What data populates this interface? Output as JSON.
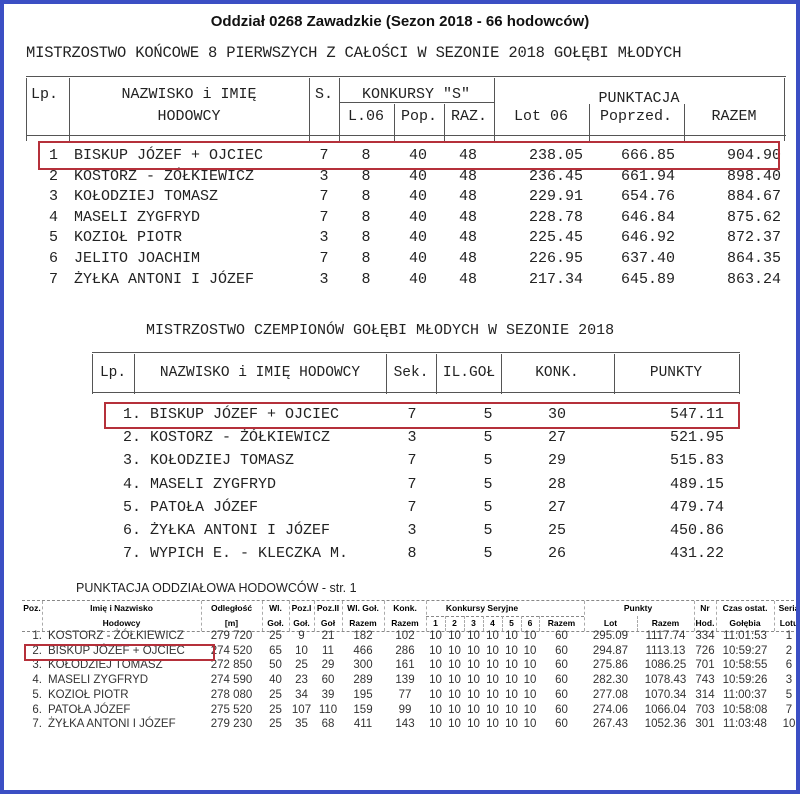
{
  "header": {
    "title": "Oddział 0268 Zawadzkie (Sezon 2018 - 66 hodowców)"
  },
  "colors": {
    "frame": "#3b4fc4",
    "highlight": "#b5303a"
  },
  "table1": {
    "title": "MISTRZOSTWO KOŃCOWE 8 PIERWSZYCH Z CAŁOŚCI W SEZONIE 2018 GOŁĘBI MŁODYCH",
    "headers": {
      "lp": "Lp.",
      "name1": "NAZWISKO i IMIĘ",
      "name2": "HODOWCY",
      "s": "S.",
      "konkursy": "KONKURSY \"S\"",
      "l06": "L.06",
      "pop": "Pop.",
      "raz": "RAZ.",
      "punktacja": "PUNKTACJA",
      "lot06": "Lot 06",
      "poprzed": "Poprzed.",
      "razem": "RAZEM"
    },
    "highlighted_row": 1,
    "rows": [
      [
        "1",
        "BISKUP JÓZEF + OJCIEC",
        "7",
        "8",
        "40",
        "48",
        "238.05",
        "666.85",
        "904.90"
      ],
      [
        "2",
        "KOSTORZ - ŻÓŁKIEWICZ",
        "3",
        "8",
        "40",
        "48",
        "236.45",
        "661.94",
        "898.40"
      ],
      [
        "3",
        "KOŁODZIEJ TOMASZ",
        "7",
        "8",
        "40",
        "48",
        "229.91",
        "654.76",
        "884.67"
      ],
      [
        "4",
        "MASELI ZYGFRYD",
        "7",
        "8",
        "40",
        "48",
        "228.78",
        "646.84",
        "875.62"
      ],
      [
        "5",
        "KOZIOŁ PIOTR",
        "3",
        "8",
        "40",
        "48",
        "225.45",
        "646.92",
        "872.37"
      ],
      [
        "6",
        "JELITO JOACHIM",
        "7",
        "8",
        "40",
        "48",
        "226.95",
        "637.40",
        "864.35"
      ],
      [
        "7",
        "ŻYŁKA ANTONI I JÓZEF",
        "3",
        "8",
        "40",
        "48",
        "217.34",
        "645.89",
        "863.24"
      ]
    ]
  },
  "table2": {
    "title": "MISTRZOSTWO CZEMPIONÓW GOŁĘBI MŁODYCH W SEZONIE 2018",
    "headers": [
      "Lp.",
      "NAZWISKO i IMIĘ HODOWCY",
      "Sek.",
      "IL.GOŁ",
      "KONK.",
      "PUNKTY"
    ],
    "highlighted_row": 1,
    "rows": [
      [
        "1.",
        "BISKUP JÓZEF + OJCIEC",
        "7",
        "5",
        "30",
        "547.11"
      ],
      [
        "2.",
        "KOSTORZ - ŻÓŁKIEWICZ",
        "3",
        "5",
        "27",
        "521.95"
      ],
      [
        "3.",
        "KOŁODZIEJ TOMASZ",
        "7",
        "5",
        "29",
        "515.83"
      ],
      [
        "4.",
        "MASELI ZYGFRYD",
        "7",
        "5",
        "28",
        "489.15"
      ],
      [
        "5.",
        "PATOŁA JÓZEF",
        "7",
        "5",
        "27",
        "479.74"
      ],
      [
        "6.",
        "ŻYŁKA ANTONI I JÓZEF",
        "3",
        "5",
        "25",
        "450.86"
      ],
      [
        "7.",
        "WYPICH E. - KLECZKA M.",
        "8",
        "5",
        "26",
        "431.22"
      ]
    ]
  },
  "table3": {
    "title": "PUNKTACJA ODDZIAŁOWA HODOWCÓW - str. 1",
    "group_headers": {
      "konkursy": "Konkursy Seryjne",
      "punkty": "Punkty"
    },
    "headers_top": [
      "Poz.",
      "Imię i Nazwisko",
      "Odległość",
      "Wl.",
      "Poz.I",
      "Poz.II",
      "Wl. Goł.",
      "Konk.",
      "",
      "",
      "",
      "",
      "",
      "",
      "",
      "",
      "",
      "Nr",
      "Czas ostat.",
      "Seria"
    ],
    "headers_bottom": [
      "",
      "Hodowcy",
      "[m]",
      "Goł.",
      "Goł.",
      "Goł",
      "Razem",
      "Razem",
      "1",
      "2",
      "3",
      "4",
      "5",
      "6",
      "Razem",
      "Lot",
      "Razem",
      "Hod.",
      "Gołębia",
      "Lotu"
    ],
    "highlighted_row": 2,
    "rows": [
      [
        "1.",
        "KOSTORZ - ŻÓŁKIEWICZ",
        "279 720",
        "25",
        "9",
        "21",
        "182",
        "102",
        "10",
        "10",
        "10",
        "10",
        "10",
        "10",
        "60",
        "295.09",
        "1117.74",
        "334",
        "11:01:53",
        "1"
      ],
      [
        "2.",
        "BISKUP JÓZEF + OJCIEC",
        "274 520",
        "65",
        "10",
        "11",
        "466",
        "286",
        "10",
        "10",
        "10",
        "10",
        "10",
        "10",
        "60",
        "294.87",
        "1113.13",
        "726",
        "10:59:27",
        "2"
      ],
      [
        "3.",
        "KOŁODZIEJ TOMASZ",
        "272 850",
        "50",
        "25",
        "29",
        "300",
        "161",
        "10",
        "10",
        "10",
        "10",
        "10",
        "10",
        "60",
        "275.86",
        "1086.25",
        "701",
        "10:58:55",
        "6"
      ],
      [
        "4.",
        "MASELI ZYGFRYD",
        "274 590",
        "40",
        "23",
        "60",
        "289",
        "139",
        "10",
        "10",
        "10",
        "10",
        "10",
        "10",
        "60",
        "282.30",
        "1078.43",
        "743",
        "10:59:26",
        "3"
      ],
      [
        "5.",
        "KOZIOŁ PIOTR",
        "278 080",
        "25",
        "34",
        "39",
        "195",
        "77",
        "10",
        "10",
        "10",
        "10",
        "10",
        "10",
        "60",
        "277.08",
        "1070.34",
        "314",
        "11:00:37",
        "5"
      ],
      [
        "6.",
        "PATOŁA JÓZEF",
        "275 520",
        "25",
        "107",
        "110",
        "159",
        "99",
        "10",
        "10",
        "10",
        "10",
        "10",
        "10",
        "60",
        "274.06",
        "1066.04",
        "703",
        "10:58:08",
        "7"
      ],
      [
        "7.",
        "ŻYŁKA ANTONI I JÓZEF",
        "279 230",
        "25",
        "35",
        "68",
        "411",
        "143",
        "10",
        "10",
        "10",
        "10",
        "10",
        "10",
        "60",
        "267.43",
        "1052.36",
        "301",
        "11:03:48",
        "10"
      ]
    ]
  }
}
